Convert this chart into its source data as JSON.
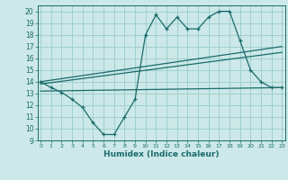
{
  "background_color": "#cce8e8",
  "grid_color": "#99cccc",
  "line_color": "#1a6b6b",
  "xlabel": "Humidex (Indice chaleur)",
  "ylabel_ticks": [
    9,
    10,
    11,
    12,
    13,
    14,
    15,
    16,
    17,
    18,
    19,
    20
  ],
  "xticks": [
    0,
    1,
    2,
    3,
    4,
    5,
    6,
    7,
    8,
    9,
    10,
    11,
    12,
    13,
    14,
    15,
    16,
    17,
    18,
    19,
    20,
    21,
    22,
    23
  ],
  "xlim": [
    -0.3,
    23.3
  ],
  "ylim": [
    9,
    20.5
  ],
  "line1_x": [
    0,
    1,
    2,
    3,
    4,
    5,
    6,
    7,
    8,
    9,
    10,
    11,
    12,
    13,
    14,
    15,
    16,
    17,
    18,
    19,
    20,
    21,
    22,
    23
  ],
  "line1_y": [
    14.0,
    13.5,
    13.1,
    12.5,
    11.8,
    10.5,
    9.5,
    9.5,
    11.0,
    12.5,
    18.0,
    19.7,
    18.5,
    19.5,
    18.5,
    18.5,
    19.5,
    20.0,
    20.0,
    17.5,
    15.0,
    14.0,
    13.5,
    13.5
  ],
  "line2_x": [
    0,
    23
  ],
  "line2_y": [
    14.0,
    17.0
  ],
  "line3_x": [
    0,
    23
  ],
  "line3_y": [
    13.8,
    16.5
  ],
  "line4_x": [
    0,
    23
  ],
  "line4_y": [
    13.2,
    13.5
  ]
}
